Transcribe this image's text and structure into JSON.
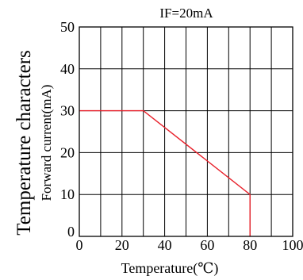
{
  "chart_data": {
    "type": "line",
    "title": "IF=20mA",
    "xlabel": "Temperature(℃)",
    "ylabel_outer": "Temperature characters",
    "ylabel_inner": "Forward current(mA)",
    "xlim": [
      0,
      100
    ],
    "ylim": [
      0,
      50
    ],
    "x_grid_step": 10,
    "y_grid_step": 10,
    "x_tick_labels": [
      {
        "value": 0,
        "label": "0"
      },
      {
        "value": 20,
        "label": "20"
      },
      {
        "value": 40,
        "label": "40"
      },
      {
        "value": 60,
        "label": "60"
      },
      {
        "value": 80,
        "label": "80"
      },
      {
        "value": 100,
        "label": "100"
      }
    ],
    "y_tick_labels": [
      {
        "value": 0,
        "label": "0"
      },
      {
        "value": 10,
        "label": "10"
      },
      {
        "value": 20,
        "label": "20"
      },
      {
        "value": 30,
        "label": "30"
      },
      {
        "value": 40,
        "label": "40"
      },
      {
        "value": 50,
        "label": "50"
      }
    ],
    "grid": true,
    "series": [
      {
        "color": "#e8202a",
        "x": [
          0,
          30,
          80,
          80
        ],
        "y": [
          30,
          30,
          10,
          0
        ]
      }
    ]
  }
}
